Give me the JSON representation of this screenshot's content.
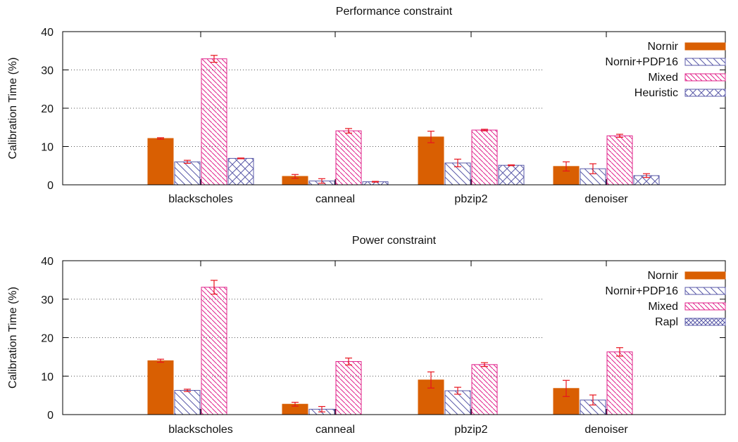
{
  "chart_data": [
    {
      "type": "bar",
      "title": "Performance constraint",
      "ylabel": "Calibration Time (%)",
      "xlabel": "",
      "ylim": [
        0,
        40
      ],
      "yticks": [
        0,
        10,
        20,
        30,
        40
      ],
      "grid": "horizontal-dotted",
      "legend_position": "top-right",
      "categories": [
        "blackscholes",
        "canneal",
        "pbzip2",
        "denoiser"
      ],
      "series": [
        {
          "name": "Nornir",
          "values": [
            12.1,
            2.2,
            12.5,
            4.8
          ],
          "errors": [
            0.2,
            0.5,
            1.5,
            1.2
          ],
          "color": "#d95f02",
          "pattern": "solid"
        },
        {
          "name": "Nornir+PDP16",
          "values": [
            6.0,
            1.0,
            5.7,
            4.2
          ],
          "errors": [
            0.4,
            0.6,
            1.0,
            1.3
          ],
          "color": "#5a5aa8",
          "pattern": "diag-back"
        },
        {
          "name": "Mixed",
          "values": [
            32.9,
            14.1,
            14.3,
            12.8
          ],
          "errors": [
            0.9,
            0.6,
            0.2,
            0.4
          ],
          "color": "#e0218a",
          "pattern": "diag-back"
        },
        {
          "name": "Heuristic",
          "values": [
            6.9,
            0.8,
            5.1,
            2.4
          ],
          "errors": [
            0.1,
            0.1,
            0.1,
            0.5
          ],
          "color": "#5a5aa8",
          "pattern": "cross"
        }
      ]
    },
    {
      "type": "bar",
      "title": "Power constraint",
      "ylabel": "Calibration Time (%)",
      "xlabel": "",
      "ylim": [
        0,
        40
      ],
      "yticks": [
        0,
        10,
        20,
        30,
        40
      ],
      "grid": "horizontal-dotted",
      "legend_position": "top-right",
      "categories": [
        "blackscholes",
        "canneal",
        "pbzip2",
        "denoiser"
      ],
      "series": [
        {
          "name": "Nornir",
          "values": [
            14.0,
            2.7,
            9.0,
            6.8
          ],
          "errors": [
            0.4,
            0.5,
            2.1,
            2.1
          ],
          "color": "#d95f02",
          "pattern": "solid"
        },
        {
          "name": "Nornir+PDP16",
          "values": [
            6.3,
            1.4,
            6.2,
            3.8
          ],
          "errors": [
            0.3,
            0.7,
            0.9,
            1.3
          ],
          "color": "#5a5aa8",
          "pattern": "diag-back"
        },
        {
          "name": "Mixed",
          "values": [
            33.1,
            13.8,
            13.0,
            16.3
          ],
          "errors": [
            1.8,
            0.9,
            0.5,
            1.1
          ],
          "color": "#e0218a",
          "pattern": "diag-back"
        },
        {
          "name": "Rapl",
          "values": [
            0,
            0,
            0,
            0
          ],
          "errors": [
            0,
            0,
            0,
            0
          ],
          "color": "#5a5aa8",
          "pattern": "crosshatch"
        }
      ]
    }
  ]
}
